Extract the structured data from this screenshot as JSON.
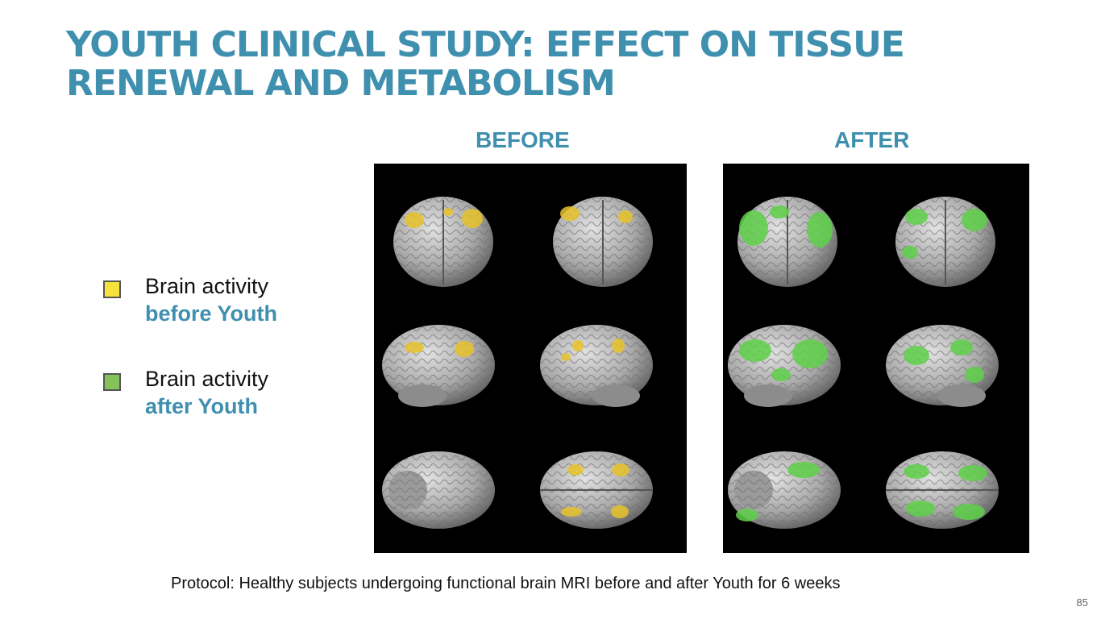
{
  "slide": {
    "title_line1": "YOUTH CLINICAL STUDY: EFFECT ON TISSUE",
    "title_line2": "RENEWAL AND METABOLISM",
    "before_label": "BEFORE",
    "after_label": "AFTER",
    "protocol": "Protocol: Healthy subjects undergoing functional brain MRI before and after Youth for 6 weeks",
    "page_number": "85"
  },
  "legend": {
    "before": {
      "line1": "Brain activity",
      "line2": "before Youth",
      "color": "#f5e23c"
    },
    "after": {
      "line1": "Brain activity",
      "line2": "after Youth",
      "color": "#86c25a"
    }
  },
  "colors": {
    "accent": "#3f8fae",
    "panel_bg": "#000000",
    "brain": "#b9b9b9",
    "highlight_before": "#e8c32a",
    "highlight_after": "#5fd04a"
  }
}
